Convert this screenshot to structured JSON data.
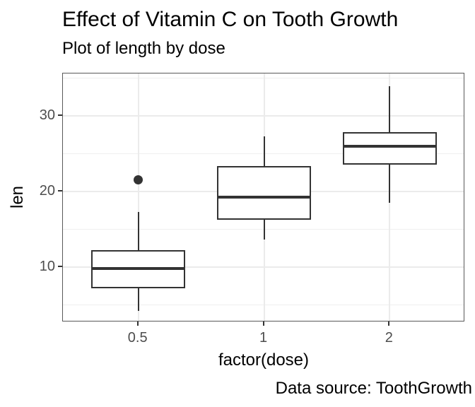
{
  "title": "Effect of Vitamin C on Tooth Growth",
  "subtitle": "Plot of length by dose",
  "caption": "Data source: ToothGrowth",
  "chart_data": {
    "type": "boxplot",
    "title": "Effect of Vitamin C on Tooth Growth",
    "subtitle": "Plot of length by dose",
    "caption": "Data source: ToothGrowth",
    "xlabel": "factor(dose)",
    "ylabel": "len",
    "categories": [
      "0.5",
      "1",
      "2"
    ],
    "ylim": [
      2.7,
      35.6
    ],
    "y_major_ticks": [
      10,
      20,
      30
    ],
    "y_minor_ticks": [
      5,
      15,
      25,
      35
    ],
    "grid": true,
    "legend": "none",
    "series": [
      {
        "category": "0.5",
        "min": 4.2,
        "q1": 7.225,
        "median": 9.85,
        "q3": 12.25,
        "max": 17.3,
        "outliers": [
          21.5
        ]
      },
      {
        "category": "1",
        "min": 13.6,
        "q1": 16.25,
        "median": 19.25,
        "q3": 23.375,
        "max": 27.3,
        "outliers": []
      },
      {
        "category": "2",
        "min": 18.5,
        "q1": 23.525,
        "median": 25.95,
        "q3": 27.825,
        "max": 33.9,
        "outliers": []
      }
    ],
    "colors": {
      "box_stroke": "#333333",
      "box_fill": "#ffffff",
      "panel_border": "#595959",
      "grid_major": "#ebebeb",
      "grid_minor": "#efefef",
      "tick_label": "#4d4d4d",
      "text": "#000000",
      "background": "#ffffff"
    }
  }
}
